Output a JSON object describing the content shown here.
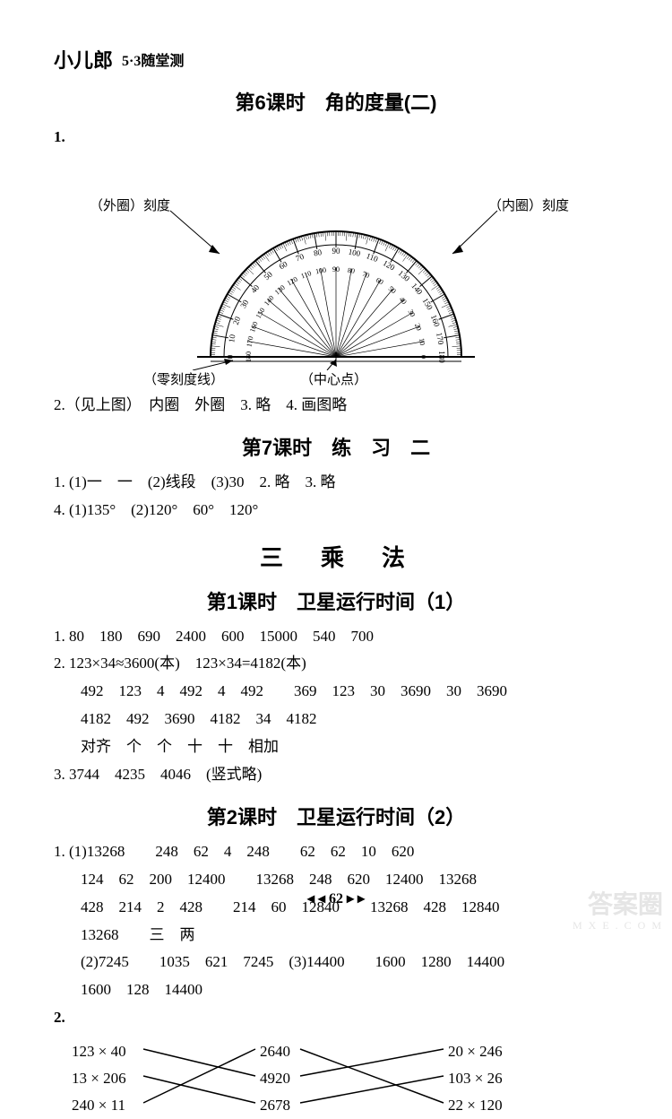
{
  "header": {
    "logo": "小儿郎",
    "series": "5·3随堂测"
  },
  "lesson6": {
    "title": "第6课时　角的度量(二)",
    "q1_num": "1.",
    "protractor": {
      "outer_label": "（外圈）刻度",
      "inner_label": "（内圈）刻度",
      "zero_label": "（零刻度线）",
      "center_label": "（中心点）",
      "outer_scale": [
        0,
        10,
        20,
        30,
        40,
        50,
        60,
        70,
        80,
        90,
        100,
        110,
        120,
        130,
        140,
        150,
        160,
        170,
        180
      ],
      "inner_scale": [
        180,
        170,
        160,
        150,
        140,
        130,
        120,
        110,
        100,
        90,
        80,
        70,
        60,
        50,
        40,
        30,
        20,
        10,
        0
      ]
    },
    "q2": "2.（见上图）　内圈　外圈　3. 略　4. 画图略"
  },
  "lesson7": {
    "title": "第7课时　练　习　二",
    "q1": "1. (1)一　一　(2)线段　(3)30　2. 略　3. 略",
    "q4": "4. (1)135°　(2)120°　60°　120°"
  },
  "chapter3": {
    "title": "三　乘　法"
  },
  "lesson3_1": {
    "title": "第1课时　卫星运行时间（1）",
    "q1": "1. 80　180　690　2400　600　15000　540　700",
    "q2a": "2. 123×34≈3600(本)　123×34=4182(本)",
    "q2b": "492　123　4　492　4　492　　369　123　30　3690　30　3690",
    "q2c": "4182　492　3690　4182　34　4182",
    "q2d": "对齐　个　个　十　十　相加",
    "q3": "3. 3744　4235　4046　(竖式略)"
  },
  "lesson3_2": {
    "title": "第2课时　卫星运行时间（2）",
    "q1a": "1. (1)13268　　248　62　4　248　　62　62　10　620",
    "q1b": "124　62　200　12400　　13268　248　620　12400　13268",
    "q1c": "428　214　2　428　　214　60　12840　　13268　428　12840",
    "q1d": "13268　　三　两",
    "q1e": "(2)7245　　1035　621　7245　(3)14400　　1600　1280　14400",
    "q1f": "1600　128　14400",
    "q2_num": "2.",
    "matching": {
      "left": [
        "123 × 40",
        "13 × 206",
        "240 × 11"
      ],
      "mid": [
        "2640",
        "4920",
        "2678"
      ],
      "right": [
        "20 × 246",
        "103 × 26",
        "22 × 120"
      ],
      "line_color": "#000000"
    }
  },
  "footer": {
    "page": "62",
    "decoration_left": "◂ ◂",
    "decoration_right": "▸ ▸"
  },
  "watermark": {
    "text": "答案圈",
    "url": "M X E . C O M"
  },
  "colors": {
    "text": "#000000",
    "background": "#ffffff",
    "watermark": "#cccccc"
  }
}
